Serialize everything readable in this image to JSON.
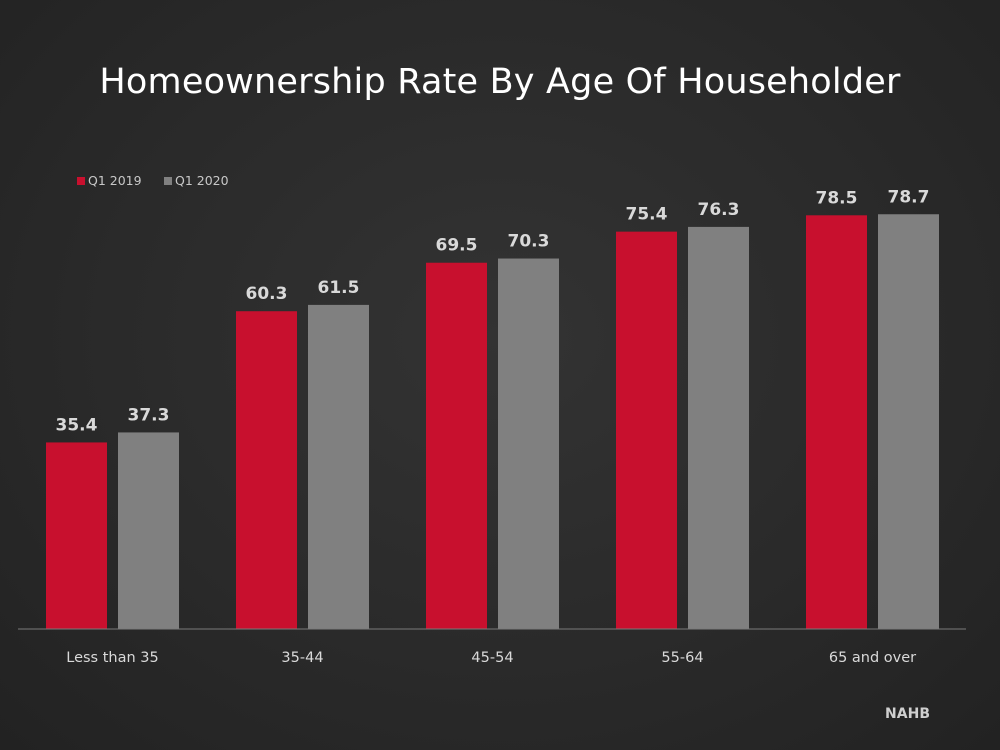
{
  "chart_data": {
    "type": "bar",
    "title": "Homeownership Rate By Age Of Householder",
    "categories": [
      "Less than 35",
      "35-44",
      "45-54",
      "55-64",
      "65 and over"
    ],
    "series": [
      {
        "name": "Q1 2019",
        "color": "#c8102e",
        "values": [
          35.4,
          60.3,
          69.5,
          75.4,
          78.5
        ]
      },
      {
        "name": "Q1 2020",
        "color": "#808080",
        "values": [
          37.3,
          61.5,
          70.3,
          76.3,
          78.7
        ]
      }
    ],
    "ylim": [
      0,
      100
    ],
    "grid": false,
    "legend_position": "top-left",
    "source": "NAHB"
  }
}
